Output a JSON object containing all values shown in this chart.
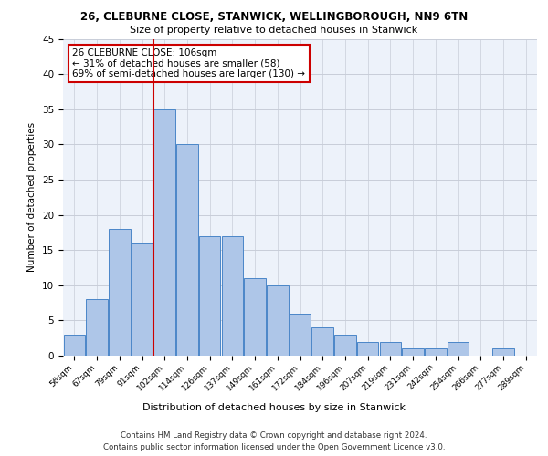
{
  "title1": "26, CLEBURNE CLOSE, STANWICK, WELLINGBOROUGH, NN9 6TN",
  "title2": "Size of property relative to detached houses in Stanwick",
  "xlabel": "Distribution of detached houses by size in Stanwick",
  "ylabel": "Number of detached properties",
  "bin_labels": [
    "56sqm",
    "67sqm",
    "79sqm",
    "91sqm",
    "102sqm",
    "114sqm",
    "126sqm",
    "137sqm",
    "149sqm",
    "161sqm",
    "172sqm",
    "184sqm",
    "196sqm",
    "207sqm",
    "219sqm",
    "231sqm",
    "242sqm",
    "254sqm",
    "266sqm",
    "277sqm",
    "289sqm"
  ],
  "bar_heights": [
    3,
    8,
    18,
    16,
    35,
    30,
    17,
    17,
    11,
    10,
    6,
    4,
    3,
    2,
    2,
    1,
    1,
    2,
    0,
    1,
    0
  ],
  "bar_color": "#aec6e8",
  "bar_edge_color": "#4a86c8",
  "vline_x_idx": 4,
  "vline_color": "#cc0000",
  "ylim": [
    0,
    45
  ],
  "yticks": [
    0,
    5,
    10,
    15,
    20,
    25,
    30,
    35,
    40,
    45
  ],
  "annotation_text": "26 CLEBURNE CLOSE: 106sqm\n← 31% of detached houses are smaller (58)\n69% of semi-detached houses are larger (130) →",
  "annotation_box_color": "#ffffff",
  "annotation_box_edge": "#cc0000",
  "footer1": "Contains HM Land Registry data © Crown copyright and database right 2024.",
  "footer2": "Contains public sector information licensed under the Open Government Licence v3.0.",
  "bg_color": "#edf2fa",
  "grid_color": "#c8cdd8"
}
